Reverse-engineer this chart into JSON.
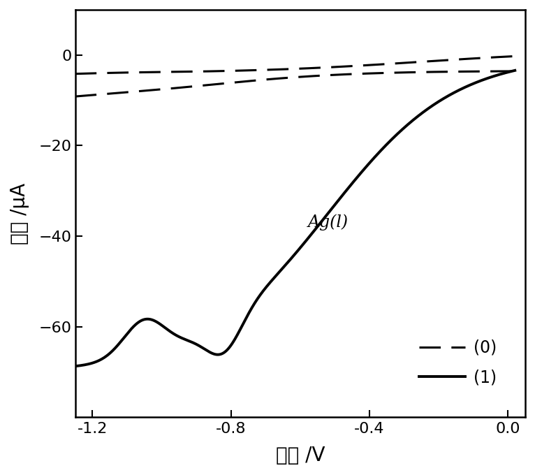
{
  "xlabel": "电位 /V",
  "ylabel": "电流 /μA",
  "xlim": [
    -1.25,
    0.05
  ],
  "ylim": [
    -80,
    10
  ],
  "xticks": [
    -1.2,
    -0.8,
    -0.4,
    0.0
  ],
  "yticks": [
    -60,
    -40,
    -20,
    0
  ],
  "annotation": "Ag(l)",
  "legend_dashed": "(0)",
  "legend_solid": "(1)",
  "background_color": "#ffffff"
}
